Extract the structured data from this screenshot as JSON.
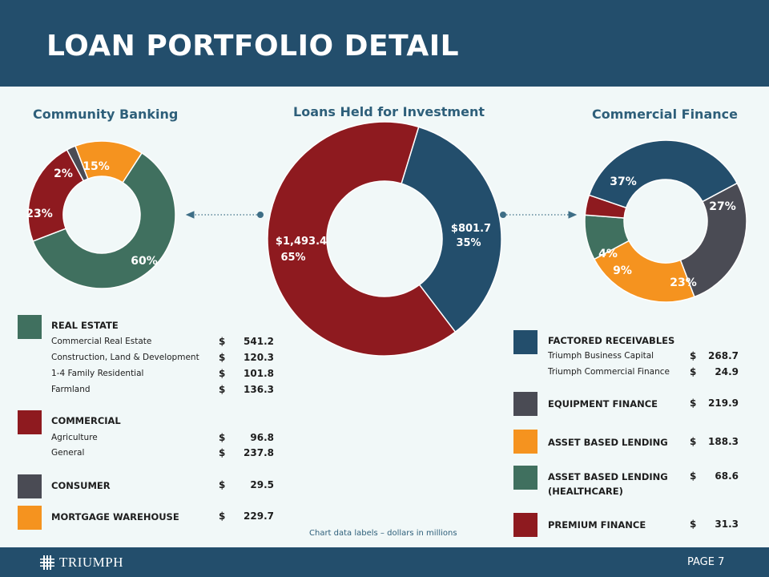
{
  "header": {
    "title": "LOAN PORTFOLIO DETAIL"
  },
  "footer": {
    "logo_text": "TRIUMPH",
    "page": "PAGE 7"
  },
  "note": "Chart data labels – dollars in millions",
  "colors": {
    "navy": "#234e6c",
    "red": "#8e1a1f",
    "green": "#40705f",
    "gray": "#4a4b54",
    "orange": "#f5931f"
  },
  "chart_data": [
    {
      "type": "pie",
      "title": "Community Banking",
      "slices": [
        {
          "label": "60%",
          "value": 60,
          "color": "#40705f"
        },
        {
          "label": "23%",
          "value": 23,
          "color": "#8e1a1f"
        },
        {
          "label": "2%",
          "value": 2,
          "color": "#4a4b54"
        },
        {
          "label": "15%",
          "value": 15,
          "color": "#f5931f"
        }
      ]
    },
    {
      "type": "pie",
      "title": "Loans Held for Investment",
      "slices": [
        {
          "label": "$801.7",
          "sublabel": "35%",
          "value": 801.7,
          "color": "#234e6c"
        },
        {
          "label": "$1,493.4",
          "sublabel": "65%",
          "value": 1493.4,
          "color": "#8e1a1f"
        }
      ]
    },
    {
      "type": "pie",
      "title": "Commercial Finance",
      "slices": [
        {
          "label": "27%",
          "value": 27,
          "color": "#4a4b54"
        },
        {
          "label": "23%",
          "value": 23,
          "color": "#f5931f"
        },
        {
          "label": "9%",
          "value": 9,
          "color": "#40705f"
        },
        {
          "label": "4%",
          "value": 4,
          "color": "#8e1a1f"
        },
        {
          "label": "37%",
          "value": 37,
          "color": "#234e6c"
        }
      ]
    }
  ],
  "legend_left": {
    "real_estate": {
      "title": "REAL ESTATE",
      "items": [
        {
          "label": "Commercial Real Estate",
          "amount": "541.2"
        },
        {
          "label": "Construction, Land & Development",
          "amount": "120.3"
        },
        {
          "label": "1-4 Family Residential",
          "amount": "101.8"
        },
        {
          "label": "Farmland",
          "amount": "136.3"
        }
      ]
    },
    "commercial": {
      "title": "COMMERCIAL",
      "items": [
        {
          "label": "Agriculture",
          "amount": "96.8"
        },
        {
          "label": "General",
          "amount": "237.8"
        }
      ]
    },
    "consumer": {
      "title": "CONSUMER",
      "amount": "29.5"
    },
    "mortgage": {
      "title": "MORTGAGE WAREHOUSE",
      "amount": "229.7"
    }
  },
  "legend_right": {
    "factored": {
      "title": "FACTORED RECEIVABLES",
      "items": [
        {
          "label": "Triumph Business Capital",
          "amount": "268.7"
        },
        {
          "label": "Triumph Commercial Finance",
          "amount": "24.9"
        }
      ]
    },
    "equipment": {
      "title": "EQUIPMENT FINANCE",
      "amount": "219.9"
    },
    "abl": {
      "title": "ASSET BASED LENDING",
      "amount": "188.3"
    },
    "abl_health": {
      "title": "ASSET BASED LENDING",
      "title2": "(HEALTHCARE)",
      "amount": "68.6"
    },
    "premium": {
      "title": "PREMIUM FINANCE",
      "amount": "31.3"
    }
  },
  "currency": "$"
}
